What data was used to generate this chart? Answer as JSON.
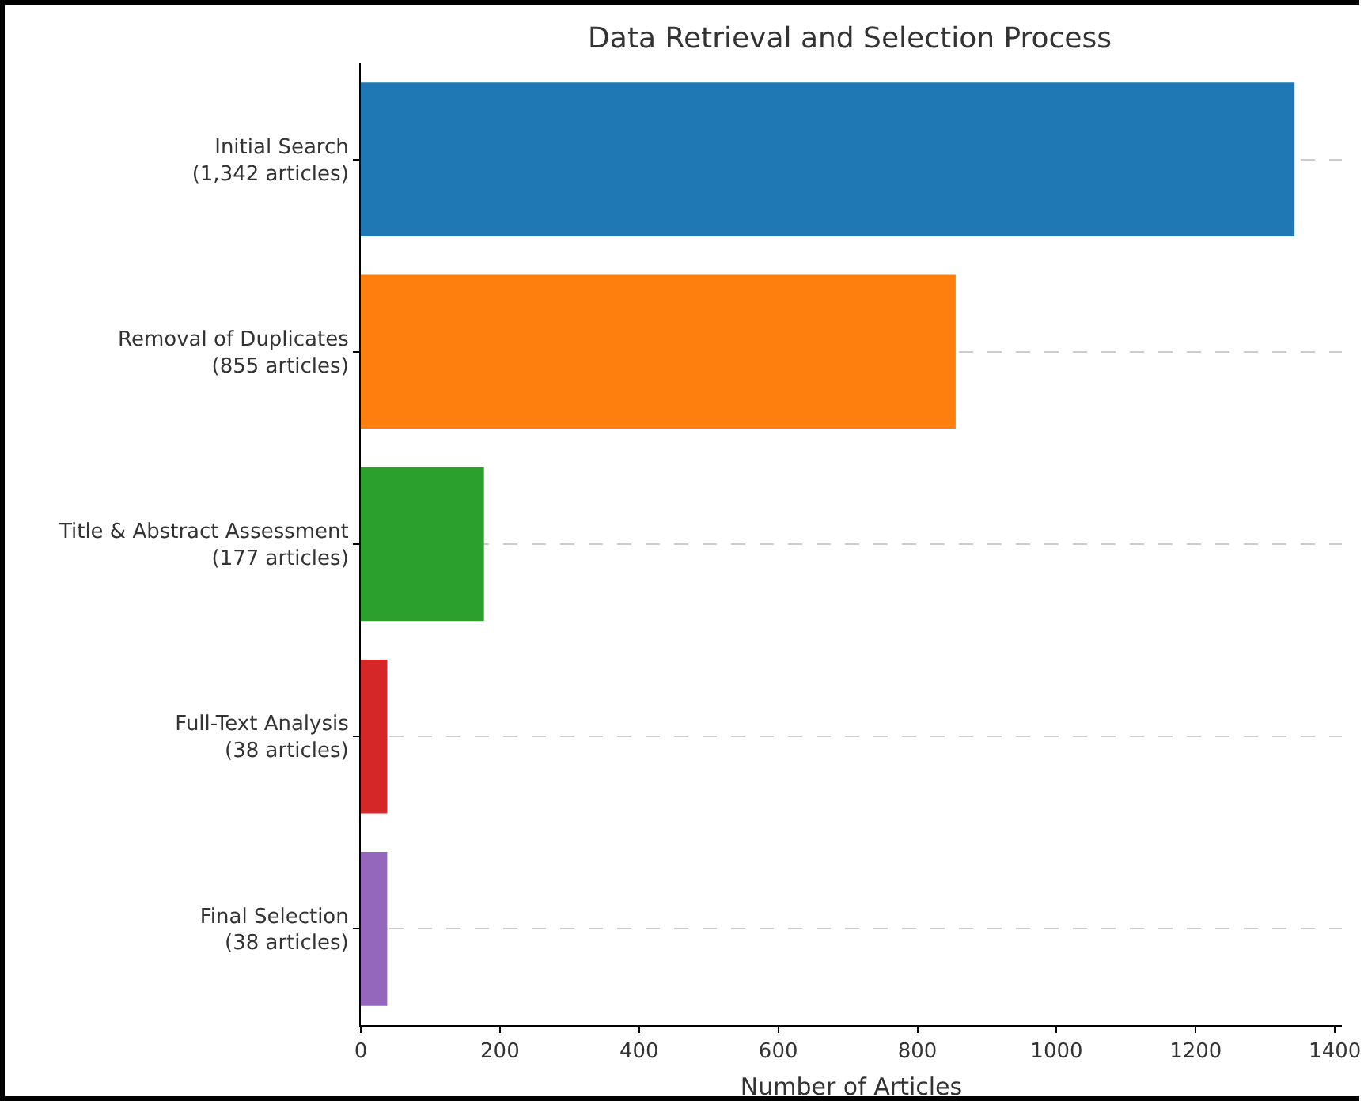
{
  "chart_data": {
    "type": "bar",
    "orientation": "horizontal",
    "title": "Data Retrieval and Selection Process",
    "xlabel": "Number of Articles",
    "categories": [
      "Initial Search\n(1,342 articles)",
      "Removal of Duplicates\n(855 articles)",
      "Title & Abstract Assessment\n(177 articles)",
      "Full-Text Analysis\n(38 articles)",
      "Final Selection\n(38 articles)"
    ],
    "values": [
      1342,
      855,
      177,
      38,
      38
    ],
    "colors": [
      "#1f77b4",
      "#ff7f0e",
      "#2ca02c",
      "#d62728",
      "#9467bd"
    ],
    "xlim": [
      0,
      1410
    ],
    "xticks": [
      0,
      200,
      400,
      600,
      800,
      1000,
      1200,
      1400
    ],
    "grid": "y"
  }
}
